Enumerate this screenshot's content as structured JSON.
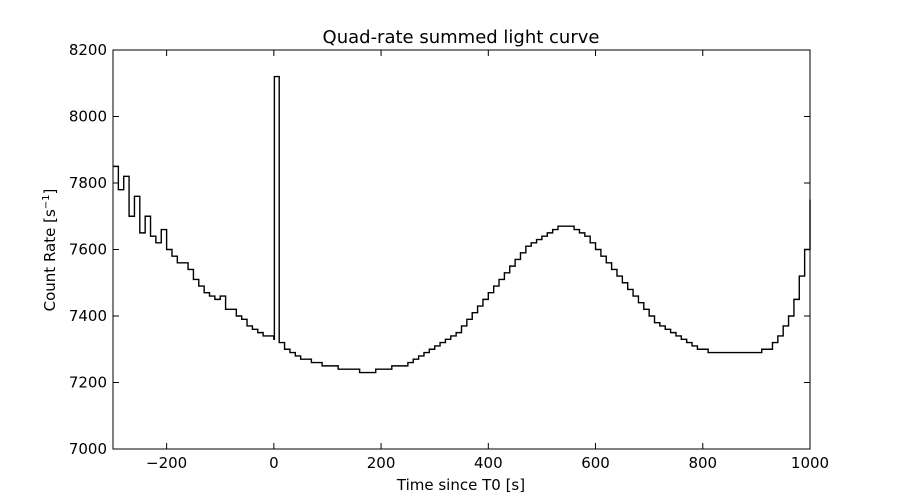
{
  "chart_data": {
    "type": "line",
    "title": "Quad-rate summed light curve",
    "xlabel": "Time since T0 [s]",
    "ylabel_main": "Count Rate [s",
    "ylabel_exp": "−1",
    "ylabel_close": "]",
    "xlim": [
      -300,
      1000
    ],
    "ylim": [
      7000,
      8200
    ],
    "xticks": [
      {
        "value": -200,
        "label": "−200"
      },
      {
        "value": 0,
        "label": "0"
      },
      {
        "value": 200,
        "label": "200"
      },
      {
        "value": 400,
        "label": "400"
      },
      {
        "value": 600,
        "label": "600"
      },
      {
        "value": 800,
        "label": "800"
      },
      {
        "value": 1000,
        "label": "1000"
      }
    ],
    "yticks": [
      {
        "value": 7000,
        "label": "7000"
      },
      {
        "value": 7200,
        "label": "7200"
      },
      {
        "value": 7400,
        "label": "7400"
      },
      {
        "value": 7600,
        "label": "7600"
      },
      {
        "value": 7800,
        "label": "7800"
      },
      {
        "value": 8000,
        "label": "8000"
      },
      {
        "value": 8200,
        "label": "8200"
      }
    ],
    "grid": false,
    "drawstyle": "steps",
    "line_color": "#000000",
    "series": [
      {
        "x": [
          -300,
          -290,
          -280,
          -270,
          -260,
          -250,
          -240,
          -230,
          -220,
          -210,
          -200,
          -190,
          -180,
          -170,
          -160,
          -150,
          -140,
          -130,
          -120,
          -110,
          -100,
          -90,
          -80,
          -70,
          -60,
          -50,
          -40,
          -30,
          -20,
          -10,
          0,
          1,
          10,
          20,
          30,
          40,
          50,
          60,
          70,
          80,
          90,
          100,
          110,
          120,
          130,
          140,
          150,
          160,
          170,
          180,
          190,
          200,
          210,
          220,
          230,
          240,
          250,
          260,
          270,
          280,
          290,
          300,
          310,
          320,
          330,
          340,
          350,
          360,
          370,
          380,
          390,
          400,
          410,
          420,
          430,
          440,
          450,
          460,
          470,
          480,
          490,
          500,
          510,
          520,
          530,
          540,
          550,
          560,
          570,
          580,
          590,
          600,
          610,
          620,
          630,
          640,
          650,
          660,
          670,
          680,
          690,
          700,
          710,
          720,
          730,
          740,
          750,
          760,
          770,
          780,
          790,
          800,
          810,
          820,
          830,
          840,
          850,
          860,
          870,
          880,
          890,
          900,
          910,
          920,
          930,
          940,
          950,
          960,
          970,
          980,
          990,
          1000
        ],
        "y": [
          7850,
          7780,
          7820,
          7700,
          7760,
          7650,
          7700,
          7640,
          7620,
          7660,
          7600,
          7580,
          7560,
          7560,
          7540,
          7510,
          7490,
          7470,
          7460,
          7450,
          7460,
          7420,
          7420,
          7400,
          7390,
          7370,
          7360,
          7350,
          7340,
          7340,
          7330,
          8120,
          7320,
          7300,
          7290,
          7280,
          7270,
          7270,
          7260,
          7260,
          7250,
          7250,
          7250,
          7240,
          7240,
          7240,
          7240,
          7230,
          7230,
          7230,
          7240,
          7240,
          7240,
          7250,
          7250,
          7250,
          7260,
          7270,
          7280,
          7290,
          7300,
          7310,
          7320,
          7330,
          7340,
          7350,
          7370,
          7390,
          7410,
          7430,
          7450,
          7470,
          7490,
          7510,
          7530,
          7550,
          7570,
          7590,
          7610,
          7620,
          7630,
          7640,
          7650,
          7660,
          7670,
          7670,
          7670,
          7660,
          7650,
          7640,
          7620,
          7600,
          7580,
          7560,
          7540,
          7520,
          7500,
          7480,
          7460,
          7440,
          7420,
          7400,
          7380,
          7370,
          7360,
          7350,
          7340,
          7330,
          7320,
          7310,
          7300,
          7300,
          7290,
          7290,
          7290,
          7290,
          7290,
          7290,
          7290,
          7290,
          7290,
          7290,
          7300,
          7300,
          7320,
          7340,
          7370,
          7400,
          7450,
          7520,
          7600,
          7750
        ]
      }
    ]
  }
}
